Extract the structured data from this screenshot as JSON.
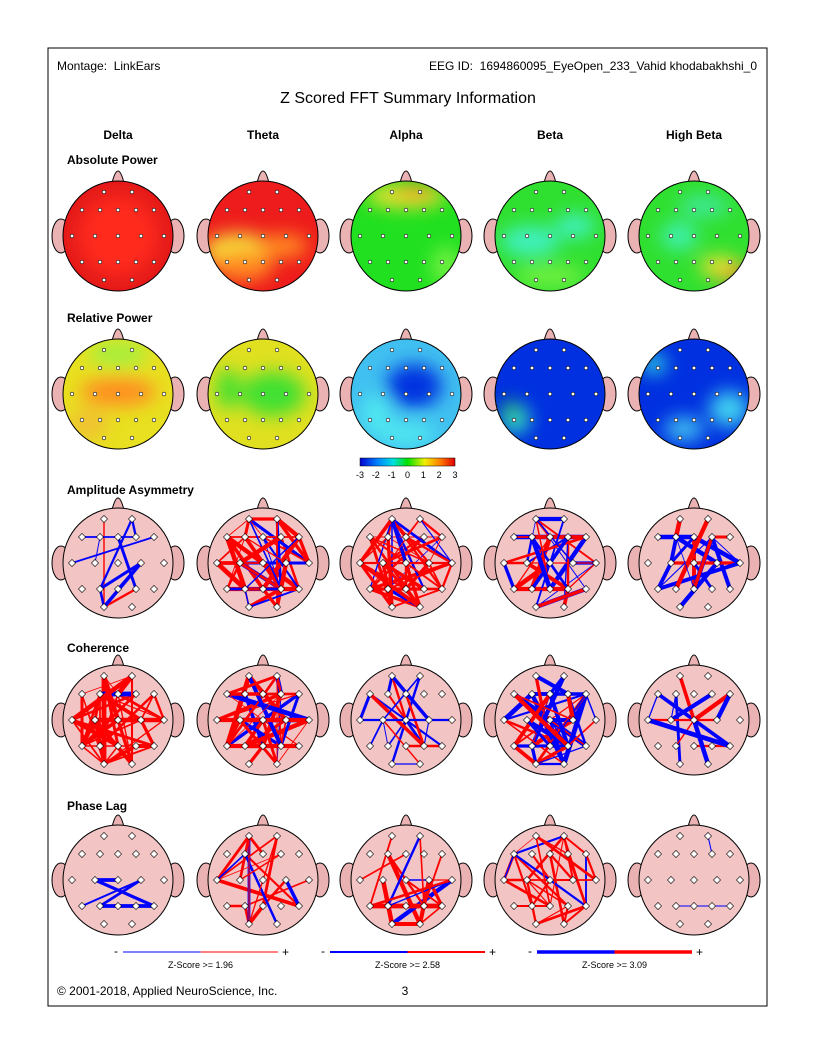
{
  "header": {
    "montage": "Montage:  LinkEars",
    "eeg_id": "EEG ID:  1694860095_EyeOpen_233_Vahid khodabakhshi_0"
  },
  "title": "Z Scored FFT Summary Information",
  "bands": [
    "Delta",
    "Theta",
    "Alpha",
    "Beta",
    "High Beta"
  ],
  "sections": [
    "Absolute Power",
    "Relative Power",
    "Amplitude Asymmetry",
    "Coherence",
    "Phase Lag"
  ],
  "color_scale": {
    "ticks": [
      "-3",
      "-2",
      "-1",
      "0",
      "1",
      "2",
      "3"
    ]
  },
  "legends": [
    {
      "minus": "-",
      "plus": "+",
      "label": "Z-Score >= 1.96"
    },
    {
      "minus": "-",
      "plus": "+",
      "label": "Z-Score >= 2.58"
    },
    {
      "minus": "-",
      "plus": "+",
      "label": "Z-Score >= 3.09"
    }
  ],
  "footer": {
    "copyright": "© 2001-2018, Applied NeuroScience, Inc.",
    "page": "3"
  }
}
